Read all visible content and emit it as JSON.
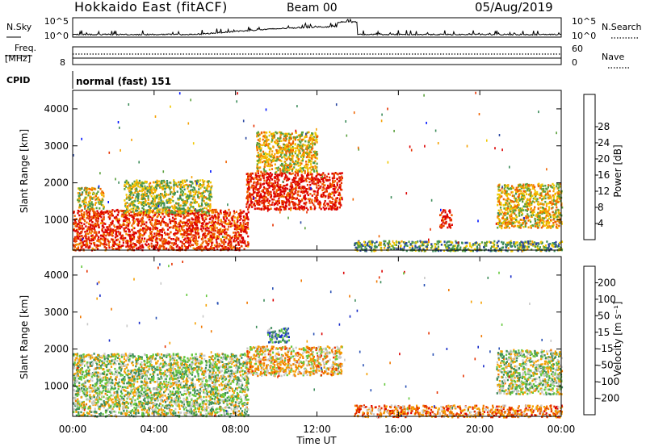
{
  "header": {
    "radar": "Hokkaido East (fitACF)",
    "beam": "Beam 00",
    "date": "05/Aug/2019"
  },
  "chart_data": {
    "type": "heatmap",
    "x_axis": {
      "label": "Time UT",
      "range_hours": [
        0,
        24
      ],
      "ticks": [
        "00:00",
        "04:00",
        "08:00",
        "12:00",
        "16:00",
        "20:00",
        "00:00"
      ]
    },
    "noise_panel": {
      "left_label": "N.Sky",
      "right_label": "N.Search",
      "left_ticks": [
        "10^5",
        "10^0"
      ],
      "right_ticks": [
        "10^5",
        "10^0"
      ]
    },
    "freq_panel": {
      "left_label_1": "Freq.",
      "left_label_2": "[MHz]",
      "right_label": "Nave",
      "left_ticks": [
        "8"
      ],
      "right_ticks": [
        "60",
        "0"
      ],
      "frequency_mhz": 9,
      "nave": 25
    },
    "cpid": {
      "label": "CPID",
      "mode": "normal (fast) 151"
    },
    "power_panel": {
      "ylabel": "Slant Range [km]",
      "yticks": [
        "1000",
        "2000",
        "3000",
        "4000"
      ],
      "ylim_km": [
        180,
        4500
      ],
      "colorbar_label": "Power [dB]",
      "colorbar_ticks": [
        "4",
        "8",
        "12",
        "16",
        "20",
        "24",
        "28"
      ],
      "colorbar_colors": [
        "#0014ff",
        "#2846a0",
        "#3c8c5a",
        "#5aa03c",
        "#f0c800",
        "#f5a000",
        "#f06400",
        "#e63200",
        "#dc0000"
      ],
      "regions": [
        {
          "t0": 0.0,
          "t1": 8.6,
          "r0": 200,
          "r1": 1300,
          "level": 0.85
        },
        {
          "t0": 0.2,
          "t1": 1.5,
          "r0": 1300,
          "r1": 1900,
          "level": 0.5
        },
        {
          "t0": 2.5,
          "t1": 6.8,
          "r0": 1200,
          "r1": 2100,
          "level": 0.45
        },
        {
          "t0": 8.5,
          "t1": 13.2,
          "r0": 1300,
          "r1": 2300,
          "level": 0.9
        },
        {
          "t0": 9.0,
          "t1": 12.0,
          "r0": 2300,
          "r1": 3400,
          "level": 0.55
        },
        {
          "t0": 13.8,
          "t1": 24.0,
          "r0": 180,
          "r1": 450,
          "level": 0.35
        },
        {
          "t0": 18.0,
          "t1": 18.6,
          "r0": 800,
          "r1": 1300,
          "level": 0.9
        },
        {
          "t0": 20.8,
          "t1": 24.0,
          "r0": 800,
          "r1": 2000,
          "level": 0.55
        }
      ]
    },
    "velocity_panel": {
      "ylabel": "Slant Range [km]",
      "yticks": [
        "1000",
        "2000",
        "3000",
        "4000"
      ],
      "ylim_km": [
        180,
        4500
      ],
      "colorbar_label": "Velocity [m s⁻¹]",
      "colorbar_ticks": [
        "200",
        "100",
        "50",
        "15",
        "-15",
        "-50",
        "-100",
        "-200"
      ],
      "colorbar_colors": [
        "#1428c8",
        "#2850b4",
        "#3c8c5a",
        "#64c83c",
        "#c8c8c8",
        "#f5a000",
        "#f07800",
        "#e63200",
        "#dc0000"
      ],
      "regions": [
        {
          "t0": 0.0,
          "t1": 8.6,
          "r0": 200,
          "r1": 1900,
          "level": 0.45
        },
        {
          "t0": 8.5,
          "t1": 13.2,
          "r0": 1300,
          "r1": 2100,
          "level": 0.6
        },
        {
          "t0": 9.5,
          "t1": 10.6,
          "r0": 2200,
          "r1": 2600,
          "level": 0.3
        },
        {
          "t0": 13.8,
          "t1": 24.0,
          "r0": 180,
          "r1": 500,
          "level": 0.7
        },
        {
          "t0": 20.8,
          "t1": 24.0,
          "r0": 800,
          "r1": 2000,
          "level": 0.45
        }
      ]
    }
  }
}
